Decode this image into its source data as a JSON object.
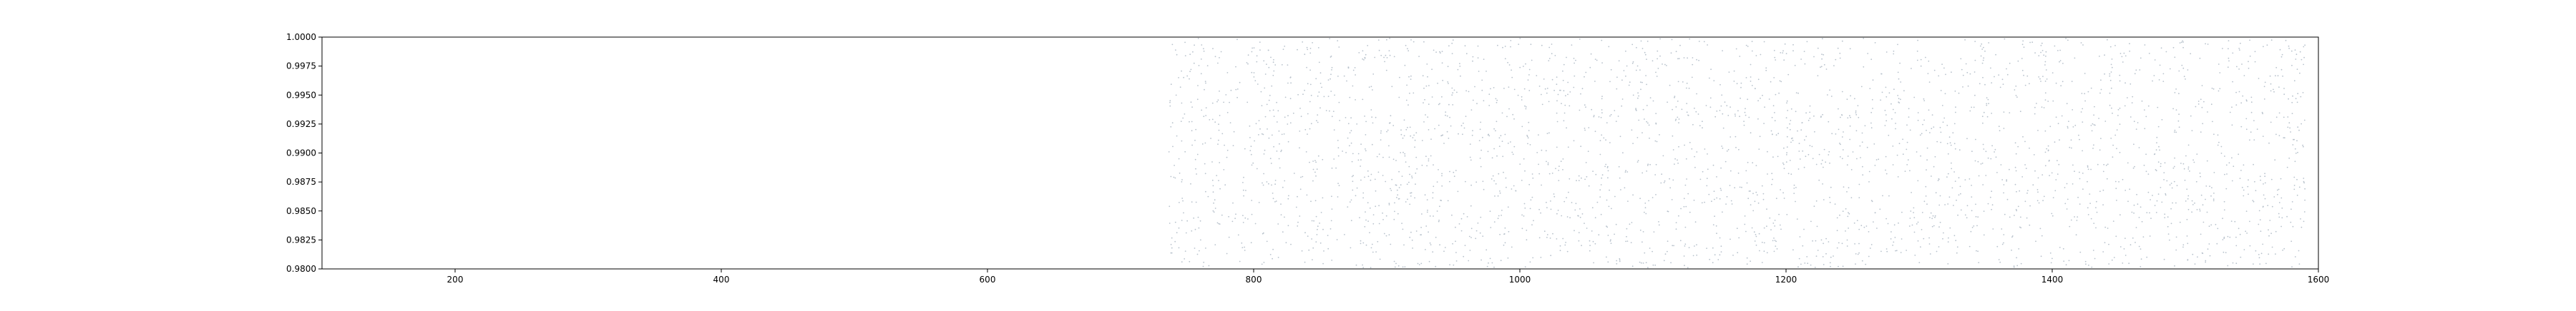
{
  "chart_data": {
    "type": "scatter",
    "title": "",
    "xlabel": "",
    "ylabel": "",
    "xlim": [
      100,
      1600
    ],
    "ylim": [
      0.98,
      1.0
    ],
    "xticks": [
      200,
      400,
      600,
      800,
      1000,
      1200,
      1400,
      1600
    ],
    "xtick_labels": [
      "200",
      "400",
      "600",
      "800",
      "1000",
      "1200",
      "1400",
      "1600"
    ],
    "yticks": [
      0.98,
      0.9825,
      0.985,
      0.9875,
      0.99,
      0.9925,
      0.995,
      0.9975,
      1.0
    ],
    "ytick_labels": [
      "0.9800",
      "0.9825",
      "0.9850",
      "0.9875",
      "0.9900",
      "0.9925",
      "0.9950",
      "0.9975",
      "1.0000"
    ],
    "grid": false,
    "legend": "none",
    "point_color": "#b8c2cc",
    "series": [
      {
        "x_range": [
          736,
          1590
        ],
        "y_range": [
          0.9801,
          0.9999
        ],
        "count": 3000,
        "distribution": "uniform"
      }
    ]
  }
}
